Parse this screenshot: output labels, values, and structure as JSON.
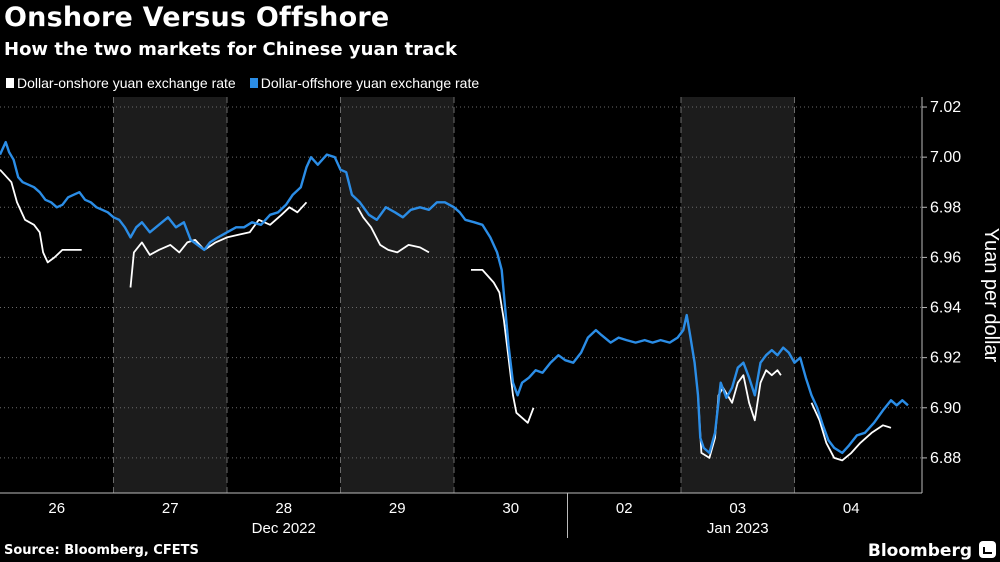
{
  "title": "Onshore Versus Offshore",
  "subtitle": "How the two markets for Chinese yuan track",
  "source": "Source: Bloomberg, CFETS",
  "brand": "Bloomberg",
  "colors": {
    "onshore": "#ffffff",
    "offshore": "#2b8de6",
    "background": "#000000",
    "shade": "#1c1c1c"
  },
  "chart_data": {
    "type": "line",
    "title": "Onshore Versus Offshore",
    "subtitle": "How the two markets for Chinese yuan track",
    "ylabel": "Yuan per dollar",
    "ylim": [
      6.866,
      7.024
    ],
    "y_ticks": [
      6.88,
      6.9,
      6.92,
      6.94,
      6.96,
      6.98,
      7.0,
      7.02
    ],
    "y_tick_labels": [
      "6.88",
      "6.90",
      "6.92",
      "6.94",
      "6.96",
      "6.98",
      "7.00",
      "7.02"
    ],
    "x_ticks": [
      {
        "label": "26",
        "x": 0.5
      },
      {
        "label": "27",
        "x": 1.5
      },
      {
        "label": "28",
        "x": 2.5
      },
      {
        "label": "29",
        "x": 3.5
      },
      {
        "label": "30",
        "x": 4.5
      },
      {
        "label": "02",
        "x": 5.5
      },
      {
        "label": "03",
        "x": 6.5
      },
      {
        "label": "04",
        "x": 7.5
      }
    ],
    "x_groups": [
      {
        "label": "Dec 2022",
        "x": 2.5
      },
      {
        "label": "Jan 2023",
        "x": 6.5
      }
    ],
    "month_divider_x": 5.0,
    "xlim": [
      0,
      8.3
    ],
    "shaded_days": [
      [
        1,
        2
      ],
      [
        3,
        4
      ],
      [
        6,
        7
      ]
    ],
    "grid": true,
    "legend_position": "top-left",
    "series": [
      {
        "name": "Dollar-onshore yuan exchange rate",
        "color": "#ffffff",
        "segments": [
          [
            [
              0.0,
              6.995
            ],
            [
              0.1,
              6.99
            ],
            [
              0.15,
              6.982
            ],
            [
              0.22,
              6.975
            ],
            [
              0.3,
              6.973
            ],
            [
              0.35,
              6.97
            ],
            [
              0.38,
              6.962
            ],
            [
              0.42,
              6.958
            ],
            [
              0.48,
              6.96
            ],
            [
              0.55,
              6.963
            ],
            [
              0.65,
              6.963
            ],
            [
              0.72,
              6.963
            ]
          ],
          [
            [
              1.15,
              6.948
            ],
            [
              1.18,
              6.962
            ],
            [
              1.25,
              6.966
            ],
            [
              1.32,
              6.961
            ],
            [
              1.4,
              6.963
            ],
            [
              1.5,
              6.965
            ],
            [
              1.58,
              6.962
            ],
            [
              1.65,
              6.966
            ],
            [
              1.72,
              6.967
            ],
            [
              1.8,
              6.963
            ],
            [
              1.9,
              6.966
            ],
            [
              2.0,
              6.968
            ],
            [
              2.1,
              6.969
            ],
            [
              2.2,
              6.97
            ],
            [
              2.28,
              6.975
            ],
            [
              2.38,
              6.973
            ],
            [
              2.48,
              6.977
            ],
            [
              2.55,
              6.98
            ],
            [
              2.62,
              6.978
            ],
            [
              2.7,
              6.982
            ]
          ],
          [
            [
              3.15,
              6.98
            ],
            [
              3.2,
              6.976
            ],
            [
              3.27,
              6.972
            ],
            [
              3.35,
              6.965
            ],
            [
              3.42,
              6.963
            ],
            [
              3.5,
              6.962
            ],
            [
              3.6,
              6.965
            ],
            [
              3.7,
              6.964
            ],
            [
              3.78,
              6.962
            ]
          ],
          [
            [
              4.15,
              6.955
            ],
            [
              4.25,
              6.955
            ],
            [
              4.35,
              6.95
            ],
            [
              4.4,
              6.946
            ],
            [
              4.44,
              6.935
            ],
            [
              4.48,
              6.92
            ],
            [
              4.52,
              6.905
            ],
            [
              4.55,
              6.898
            ],
            [
              4.6,
              6.896
            ],
            [
              4.65,
              6.894
            ],
            [
              4.7,
              6.9
            ]
          ],
          [
            [
              6.15,
              6.905
            ],
            [
              6.18,
              6.882
            ],
            [
              6.25,
              6.88
            ],
            [
              6.3,
              6.888
            ],
            [
              6.33,
              6.905
            ],
            [
              6.37,
              6.908
            ],
            [
              6.45,
              6.902
            ],
            [
              6.5,
              6.91
            ],
            [
              6.55,
              6.913
            ],
            [
              6.6,
              6.902
            ],
            [
              6.65,
              6.895
            ],
            [
              6.7,
              6.91
            ],
            [
              6.75,
              6.915
            ],
            [
              6.8,
              6.913
            ],
            [
              6.85,
              6.915
            ],
            [
              6.88,
              6.913
            ]
          ],
          [
            [
              7.15,
              6.902
            ],
            [
              7.22,
              6.895
            ],
            [
              7.28,
              6.886
            ],
            [
              7.35,
              6.88
            ],
            [
              7.42,
              6.879
            ],
            [
              7.5,
              6.882
            ],
            [
              7.58,
              6.886
            ],
            [
              7.68,
              6.89
            ],
            [
              7.78,
              6.893
            ],
            [
              7.85,
              6.892
            ]
          ]
        ]
      },
      {
        "name": "Dollar-offshore yuan exchange rate",
        "color": "#2b8de6",
        "segments": [
          [
            [
              0.0,
              7.001
            ],
            [
              0.05,
              7.006
            ],
            [
              0.08,
              7.002
            ],
            [
              0.12,
              6.999
            ],
            [
              0.16,
              6.992
            ],
            [
              0.2,
              6.99
            ],
            [
              0.25,
              6.989
            ],
            [
              0.3,
              6.988
            ],
            [
              0.35,
              6.986
            ],
            [
              0.4,
              6.983
            ],
            [
              0.45,
              6.982
            ],
            [
              0.5,
              6.98
            ],
            [
              0.55,
              6.981
            ],
            [
              0.6,
              6.984
            ],
            [
              0.65,
              6.985
            ],
            [
              0.7,
              6.986
            ],
            [
              0.75,
              6.983
            ],
            [
              0.8,
              6.982
            ],
            [
              0.85,
              6.98
            ],
            [
              0.9,
              6.979
            ],
            [
              0.95,
              6.978
            ],
            [
              1.0,
              6.976
            ],
            [
              1.05,
              6.975
            ],
            [
              1.1,
              6.972
            ],
            [
              1.15,
              6.968
            ],
            [
              1.2,
              6.972
            ],
            [
              1.25,
              6.974
            ],
            [
              1.32,
              6.97
            ],
            [
              1.4,
              6.973
            ],
            [
              1.48,
              6.976
            ],
            [
              1.55,
              6.972
            ],
            [
              1.62,
              6.974
            ],
            [
              1.68,
              6.967
            ],
            [
              1.74,
              6.965
            ],
            [
              1.8,
              6.963
            ],
            [
              1.85,
              6.966
            ],
            [
              1.92,
              6.968
            ],
            [
              2.0,
              6.97
            ],
            [
              2.08,
              6.972
            ],
            [
              2.15,
              6.972
            ],
            [
              2.22,
              6.974
            ],
            [
              2.3,
              6.973
            ],
            [
              2.38,
              6.977
            ],
            [
              2.45,
              6.978
            ],
            [
              2.52,
              6.981
            ],
            [
              2.58,
              6.985
            ],
            [
              2.65,
              6.988
            ],
            [
              2.7,
              6.996
            ],
            [
              2.74,
              7.0
            ],
            [
              2.8,
              6.997
            ],
            [
              2.88,
              7.001
            ],
            [
              2.95,
              7.0
            ],
            [
              3.0,
              6.995
            ],
            [
              3.05,
              6.994
            ],
            [
              3.1,
              6.985
            ],
            [
              3.17,
              6.982
            ],
            [
              3.25,
              6.977
            ],
            [
              3.32,
              6.975
            ],
            [
              3.4,
              6.98
            ],
            [
              3.48,
              6.978
            ],
            [
              3.55,
              6.976
            ],
            [
              3.62,
              6.979
            ],
            [
              3.7,
              6.98
            ],
            [
              3.78,
              6.979
            ],
            [
              3.85,
              6.982
            ],
            [
              3.92,
              6.982
            ],
            [
              4.0,
              6.98
            ],
            [
              4.05,
              6.978
            ],
            [
              4.1,
              6.975
            ],
            [
              4.18,
              6.974
            ],
            [
              4.25,
              6.973
            ],
            [
              4.32,
              6.968
            ],
            [
              4.38,
              6.962
            ],
            [
              4.42,
              6.955
            ],
            [
              4.45,
              6.94
            ],
            [
              4.48,
              6.925
            ],
            [
              4.52,
              6.91
            ],
            [
              4.56,
              6.905
            ],
            [
              4.6,
              6.91
            ],
            [
              4.66,
              6.912
            ],
            [
              4.72,
              6.915
            ],
            [
              4.78,
              6.914
            ],
            [
              4.85,
              6.918
            ],
            [
              4.92,
              6.921
            ],
            [
              4.98,
              6.919
            ],
            [
              5.05,
              6.918
            ],
            [
              5.12,
              6.922
            ],
            [
              5.18,
              6.928
            ],
            [
              5.25,
              6.931
            ],
            [
              5.3,
              6.929
            ],
            [
              5.38,
              6.926
            ],
            [
              5.45,
              6.928
            ],
            [
              5.52,
              6.927
            ],
            [
              5.6,
              6.926
            ],
            [
              5.68,
              6.927
            ],
            [
              5.75,
              6.926
            ],
            [
              5.82,
              6.927
            ],
            [
              5.9,
              6.926
            ],
            [
              5.97,
              6.928
            ],
            [
              6.02,
              6.931
            ],
            [
              6.05,
              6.937
            ],
            [
              6.08,
              6.929
            ],
            [
              6.12,
              6.918
            ],
            [
              6.15,
              6.905
            ],
            [
              6.17,
              6.888
            ],
            [
              6.2,
              6.884
            ],
            [
              6.25,
              6.882
            ],
            [
              6.3,
              6.89
            ],
            [
              6.35,
              6.91
            ],
            [
              6.4,
              6.904
            ],
            [
              6.45,
              6.908
            ],
            [
              6.5,
              6.916
            ],
            [
              6.55,
              6.918
            ],
            [
              6.6,
              6.912
            ],
            [
              6.65,
              6.905
            ],
            [
              6.7,
              6.918
            ],
            [
              6.75,
              6.921
            ],
            [
              6.8,
              6.923
            ],
            [
              6.85,
              6.921
            ],
            [
              6.9,
              6.924
            ],
            [
              6.95,
              6.922
            ],
            [
              7.0,
              6.918
            ],
            [
              7.05,
              6.92
            ],
            [
              7.1,
              6.912
            ],
            [
              7.15,
              6.905
            ],
            [
              7.2,
              6.9
            ],
            [
              7.25,
              6.893
            ],
            [
              7.3,
              6.887
            ],
            [
              7.35,
              6.884
            ],
            [
              7.42,
              6.882
            ],
            [
              7.48,
              6.885
            ],
            [
              7.55,
              6.889
            ],
            [
              7.62,
              6.89
            ],
            [
              7.7,
              6.894
            ],
            [
              7.78,
              6.899
            ],
            [
              7.85,
              6.903
            ],
            [
              7.9,
              6.901
            ],
            [
              7.95,
              6.903
            ],
            [
              8.0,
              6.901
            ]
          ]
        ]
      }
    ]
  }
}
